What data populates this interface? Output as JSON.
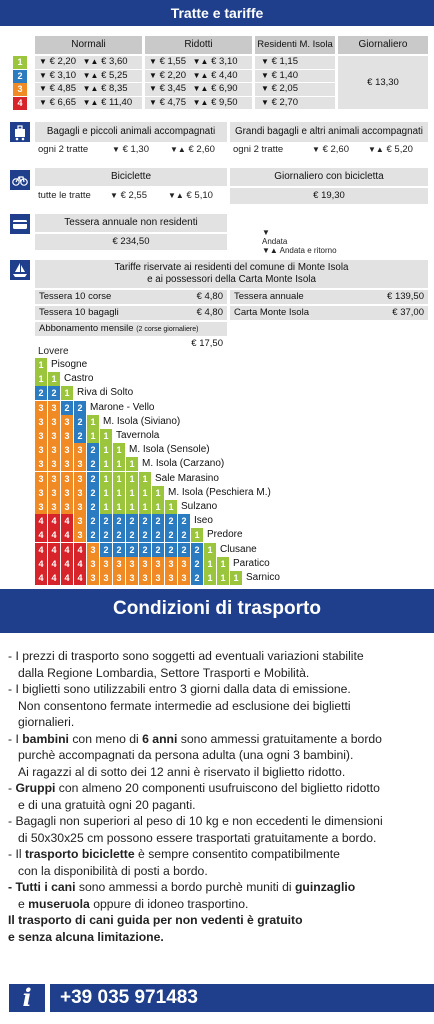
{
  "header": {
    "title": "Tratte e tariffe"
  },
  "fares": {
    "col_normali": "Normali",
    "col_ridotti": "Ridotti",
    "col_residenti": "Residenti M. Isola",
    "col_giornaliero": "Giornaliero",
    "giornaliero_value": "€ 13,30",
    "rows": [
      {
        "zone": "1",
        "n_a": "€ 2,20",
        "n_ar": "€ 3,60",
        "r_a": "€ 1,55",
        "r_ar": "€ 3,10",
        "res": "€ 1,15"
      },
      {
        "zone": "2",
        "n_a": "€ 3,10",
        "n_ar": "€ 5,25",
        "r_a": "€ 2,20",
        "r_ar": "€ 4,40",
        "res": "€ 1,40"
      },
      {
        "zone": "3",
        "n_a": "€ 4,85",
        "n_ar": "€ 8,35",
        "r_a": "€ 3,45",
        "r_ar": "€ 6,90",
        "res": "€ 2,05"
      },
      {
        "zone": "4",
        "n_a": "€ 6,65",
        "n_ar": "€ 11,40",
        "r_a": "€ 4,75",
        "r_ar": "€ 9,50",
        "res": "€ 2,70"
      }
    ]
  },
  "baggage": {
    "small_title": "Bagagli e piccoli animali accompagnati",
    "small_note": "ogni 2 tratte",
    "small_a": "€ 1,30",
    "small_ar": "€ 2,60",
    "big_title": "Grandi bagagli e altri animali accompagnati",
    "big_note": "ogni 2 tratte",
    "big_a": "€ 2,60",
    "big_ar": "€ 5,20"
  },
  "bikes": {
    "title": "Biciclette",
    "note": "tutte le tratte",
    "a": "€ 2,55",
    "ar": "€ 5,10",
    "daily_title": "Giornaliero con bicicletta",
    "daily_value": "€ 19,30"
  },
  "annual": {
    "title": "Tessera annuale non residenti",
    "value": "€ 234,50",
    "legend_andata": "Andata",
    "legend_ar": "Andata e ritorno"
  },
  "residents": {
    "title_line1": "Tariffe riservate ai residenti del comune di Monte Isola",
    "title_line2": "e ai possessori della Carta Monte Isola",
    "items": [
      {
        "label": "Tessera 10 corse",
        "value": "€ 4,80"
      },
      {
        "label": "Tessera annuale",
        "value": "€ 139,50"
      },
      {
        "label": "Tessera 10 bagagli",
        "value": "€ 4,80"
      },
      {
        "label": "Carta Monte Isola",
        "value": "€ 37,00"
      }
    ],
    "monthly_label": "Abbonamento mensile",
    "monthly_note": "(2 corse giornaliere)",
    "monthly_value": "€ 17,50"
  },
  "ladder": {
    "top": "Lovere",
    "rows": [
      {
        "label": "Pisogne",
        "z": [
          1
        ]
      },
      {
        "label": "Castro",
        "z": [
          1,
          1
        ]
      },
      {
        "label": "Riva di Solto",
        "z": [
          2,
          2,
          1
        ]
      },
      {
        "label": "Marone - Vello",
        "z": [
          3,
          3,
          2,
          2
        ]
      },
      {
        "label": "M. Isola (Siviano)",
        "z": [
          3,
          3,
          3,
          2,
          1
        ]
      },
      {
        "label": "Tavernola",
        "z": [
          3,
          3,
          3,
          2,
          1,
          1
        ]
      },
      {
        "label": "M. Isola (Sensole)",
        "z": [
          3,
          3,
          3,
          3,
          2,
          1,
          1
        ]
      },
      {
        "label": "M. Isola (Carzano)",
        "z": [
          3,
          3,
          3,
          3,
          2,
          1,
          1,
          1
        ]
      },
      {
        "label": "Sale Marasino",
        "z": [
          3,
          3,
          3,
          3,
          2,
          1,
          1,
          1,
          1
        ]
      },
      {
        "label": "M. Isola (Peschiera M.)",
        "z": [
          3,
          3,
          3,
          3,
          2,
          1,
          1,
          1,
          1,
          1
        ]
      },
      {
        "label": "Sulzano",
        "z": [
          3,
          3,
          3,
          3,
          2,
          1,
          1,
          1,
          1,
          1,
          1
        ]
      },
      {
        "label": "Iseo",
        "z": [
          4,
          4,
          4,
          3,
          2,
          2,
          2,
          2,
          2,
          2,
          2,
          2
        ]
      },
      {
        "label": "Predore",
        "z": [
          4,
          4,
          4,
          3,
          2,
          2,
          2,
          2,
          2,
          2,
          2,
          2,
          1
        ]
      },
      {
        "label": "Clusane",
        "z": [
          4,
          4,
          4,
          4,
          3,
          2,
          2,
          2,
          2,
          2,
          2,
          2,
          2,
          1
        ]
      },
      {
        "label": "Paratico",
        "z": [
          4,
          4,
          4,
          4,
          3,
          3,
          3,
          3,
          3,
          3,
          3,
          3,
          2,
          1,
          1
        ]
      },
      {
        "label": "Sarnico",
        "z": [
          4,
          4,
          4,
          4,
          3,
          3,
          3,
          3,
          3,
          3,
          3,
          3,
          2,
          1,
          1,
          1
        ]
      }
    ]
  },
  "conditions": {
    "title": "Condizioni di trasporto",
    "p1": "- I prezzi di trasporto sono soggetti ad eventuali variazioni stabilite",
    "p1b": "dalla Regione Lombardia, Settore Trasporti e Mobilità.",
    "p2": "- I biglietti sono utilizzabili entro 3 giorni dalla data di emissione.",
    "p2b": "Non consentono fermate intermedie ad esclusione dei biglietti",
    "p2c": "giornalieri.",
    "p3_pre": "- I ",
    "p3_b1": "bambini",
    "p3_mid": " con meno di ",
    "p3_b2": "6 anni",
    "p3_post": " sono ammessi gratuitamente a bordo",
    "p3b": "purchè accompagnati da persona adulta (una ogni 3 bambini).",
    "p3c": "Ai ragazzi al di sotto dei 12 anni è riservato il biglietto ridotto.",
    "p4_pre": "- ",
    "p4_b": "Gruppi",
    "p4_post": " con almeno 20 componenti usufruiscono del biglietto ridotto",
    "p4b": "e di una gratuità ogni 20 paganti.",
    "p5": "- Bagagli non superiori al peso di 10 kg e non eccedenti le dimensioni",
    "p5b": "di 50x30x25 cm possono essere trasportati gratuitamente a bordo.",
    "p6_pre": "- Il ",
    "p6_b": "trasporto biciclette",
    "p6_post": " è sempre consentito compatibilmente",
    "p6b": "con la disponibilità di posti a bordo.",
    "p7_b1": "- Tutti i cani",
    "p7_mid": " sono ammessi a bordo purchè muniti di ",
    "p7_b2": "guinzaglio",
    "p7b_pre": "e ",
    "p7b_b": "museruola",
    "p7b_post": " oppure di idoneo trasportino.",
    "p8": "Il trasporto di cani guida per non vedenti è gratuito",
    "p8b": "e senza alcuna limitazione."
  },
  "footer": {
    "info": "i",
    "phone": "+39 035 971483"
  },
  "colors": {
    "navy": "#1f3f8c",
    "zone1": "#9bc53d",
    "zone2": "#2a7bc0",
    "zone3": "#f08a24",
    "zone4": "#d7242b"
  }
}
